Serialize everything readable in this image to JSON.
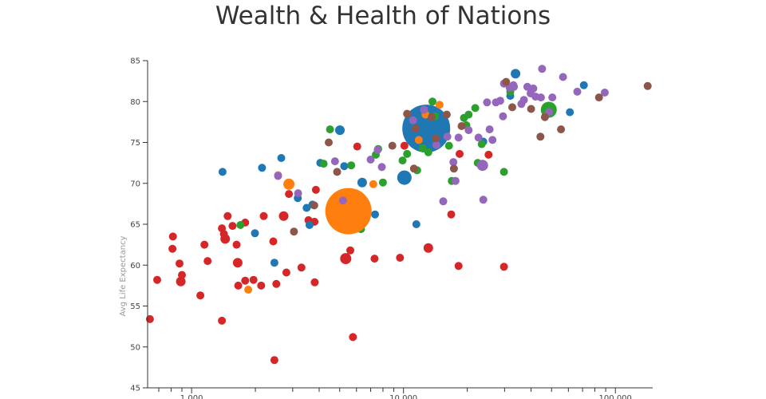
{
  "chart_data": {
    "type": "scatter",
    "title": "Wealth & Health of Nations",
    "xlabel": "",
    "ylabel": "Avg Life Expectancy",
    "x_scale": "log",
    "xlim": [
      620,
      150000
    ],
    "ylim": [
      45,
      85
    ],
    "grid": false,
    "x_ticks": [
      1000,
      10000,
      100000
    ],
    "x_tick_labels": [
      "1,000",
      "10,000",
      "100,000"
    ],
    "y_ticks": [
      45,
      50,
      55,
      60,
      65,
      70,
      75,
      80,
      85
    ],
    "y_tick_labels": [
      "45",
      "50",
      "55",
      "60",
      "65",
      "70",
      "75",
      "80",
      "85"
    ],
    "colors": {
      "red": "#d62728",
      "blue": "#1f77b4",
      "green": "#2ca02c",
      "orange": "#ff7f0e",
      "purple": "#9467bd",
      "brown": "#8c564b"
    },
    "series": [
      {
        "color_key": "red",
        "points": [
          [
            636,
            53.4,
            5
          ],
          [
            688,
            58.2,
            5
          ],
          [
            816,
            63.5,
            5
          ],
          [
            812,
            62.0,
            5
          ],
          [
            877,
            60.2,
            5
          ],
          [
            889,
            58.0,
            6
          ],
          [
            900,
            58.8,
            5
          ],
          [
            1100,
            56.3,
            5
          ],
          [
            1150,
            62.5,
            5
          ],
          [
            1190,
            60.5,
            5
          ],
          [
            1390,
            53.2,
            5
          ],
          [
            1390,
            64.5,
            5
          ],
          [
            1440,
            63.2,
            6
          ],
          [
            1420,
            63.8,
            5
          ],
          [
            1480,
            66.0,
            5
          ],
          [
            1560,
            64.8,
            5
          ],
          [
            1630,
            62.5,
            5
          ],
          [
            1650,
            60.3,
            6
          ],
          [
            1660,
            57.5,
            5
          ],
          [
            1790,
            65.2,
            5
          ],
          [
            1790,
            58.1,
            5
          ],
          [
            1960,
            58.2,
            5
          ],
          [
            2130,
            57.5,
            5
          ],
          [
            2190,
            66.0,
            5
          ],
          [
            2430,
            62.9,
            5
          ],
          [
            2460,
            48.4,
            5
          ],
          [
            2510,
            57.7,
            5
          ],
          [
            2720,
            66.0,
            6
          ],
          [
            2800,
            59.1,
            5
          ],
          [
            2880,
            68.7,
            5
          ],
          [
            3300,
            59.7,
            5
          ],
          [
            3560,
            65.5,
            5
          ],
          [
            3800,
            65.3,
            5
          ],
          [
            3810,
            57.9,
            5
          ],
          [
            3860,
            69.2,
            5
          ],
          [
            5340,
            60.8,
            7
          ],
          [
            5610,
            61.8,
            5
          ],
          [
            5770,
            51.2,
            5
          ],
          [
            6050,
            74.5,
            5
          ],
          [
            7300,
            60.8,
            5
          ],
          [
            9630,
            60.9,
            5
          ],
          [
            10100,
            74.6,
            5
          ],
          [
            13100,
            62.1,
            6
          ],
          [
            16800,
            66.2,
            5
          ],
          [
            18200,
            59.9,
            5
          ],
          [
            18400,
            73.6,
            5
          ],
          [
            25200,
            73.5,
            5
          ],
          [
            29800,
            59.8,
            5
          ]
        ]
      },
      {
        "color_key": "blue",
        "points": [
          [
            1400,
            71.4,
            5
          ],
          [
            1990,
            63.9,
            5
          ],
          [
            2150,
            71.9,
            5
          ],
          [
            2460,
            60.3,
            5
          ],
          [
            2650,
            73.1,
            5
          ],
          [
            3170,
            68.2,
            5
          ],
          [
            3490,
            67.0,
            5
          ],
          [
            3600,
            64.9,
            5
          ],
          [
            3720,
            67.4,
            5
          ],
          [
            4050,
            72.5,
            5
          ],
          [
            4870,
            66.1,
            5
          ],
          [
            5010,
            76.5,
            6
          ],
          [
            5250,
            72.1,
            5
          ],
          [
            6380,
            70.1,
            6
          ],
          [
            7340,
            66.2,
            5
          ],
          [
            10100,
            70.7,
            9
          ],
          [
            11500,
            65.0,
            5
          ],
          [
            12800,
            76.7,
            30
          ],
          [
            23800,
            75.1,
            5
          ],
          [
            33800,
            83.4,
            6
          ],
          [
            31900,
            80.7,
            5
          ],
          [
            61000,
            78.7,
            5
          ],
          [
            71000,
            82.0,
            5
          ]
        ]
      },
      {
        "color_key": "green",
        "points": [
          [
            1700,
            64.9,
            5
          ],
          [
            4200,
            72.4,
            5
          ],
          [
            4500,
            76.6,
            5
          ],
          [
            5670,
            72.2,
            5
          ],
          [
            6300,
            64.4,
            5
          ],
          [
            7400,
            73.5,
            5
          ],
          [
            7600,
            74.2,
            5
          ],
          [
            8000,
            70.1,
            5
          ],
          [
            9900,
            72.8,
            5
          ],
          [
            10400,
            73.6,
            5
          ],
          [
            11600,
            71.6,
            5
          ],
          [
            12300,
            74.3,
            5
          ],
          [
            13100,
            73.8,
            5
          ],
          [
            13700,
            80.0,
            5
          ],
          [
            14100,
            78.2,
            5
          ],
          [
            16400,
            74.6,
            5
          ],
          [
            16900,
            70.3,
            5
          ],
          [
            19300,
            78.0,
            5
          ],
          [
            19800,
            77.1,
            5
          ],
          [
            20300,
            78.4,
            5
          ],
          [
            21800,
            79.2,
            5
          ],
          [
            22400,
            72.5,
            5
          ],
          [
            23400,
            74.8,
            5
          ],
          [
            29800,
            71.4,
            5
          ],
          [
            31900,
            81.2,
            5
          ],
          [
            48500,
            79.0,
            10
          ]
        ]
      },
      {
        "color_key": "orange",
        "points": [
          [
            1850,
            57.0,
            5
          ],
          [
            2560,
            71.0,
            5
          ],
          [
            2880,
            69.9,
            7
          ],
          [
            5500,
            66.6,
            29
          ],
          [
            7200,
            69.9,
            5
          ],
          [
            11800,
            75.3,
            5
          ],
          [
            12700,
            78.4,
            5
          ],
          [
            14800,
            79.6,
            5
          ]
        ]
      },
      {
        "color_key": "purple",
        "points": [
          [
            2560,
            70.9,
            5
          ],
          [
            3180,
            68.8,
            5
          ],
          [
            4750,
            72.7,
            5
          ],
          [
            5180,
            67.9,
            5
          ],
          [
            7000,
            72.9,
            5
          ],
          [
            7560,
            74.1,
            5
          ],
          [
            7900,
            72.0,
            5
          ],
          [
            11100,
            77.7,
            5
          ],
          [
            12500,
            79.0,
            5
          ],
          [
            14300,
            74.7,
            5
          ],
          [
            15400,
            67.8,
            5
          ],
          [
            16100,
            75.7,
            5
          ],
          [
            17200,
            72.6,
            5
          ],
          [
            17600,
            70.3,
            5
          ],
          [
            18200,
            75.6,
            5
          ],
          [
            20300,
            76.5,
            5
          ],
          [
            22600,
            75.6,
            5
          ],
          [
            23600,
            72.2,
            7
          ],
          [
            23800,
            68.0,
            5
          ],
          [
            24800,
            79.9,
            5
          ],
          [
            25500,
            76.6,
            5
          ],
          [
            26300,
            75.3,
            5
          ],
          [
            27300,
            79.9,
            5
          ],
          [
            28600,
            80.1,
            5
          ],
          [
            29500,
            78.2,
            5
          ],
          [
            29800,
            82.2,
            5
          ],
          [
            31700,
            81.7,
            5
          ],
          [
            33000,
            82.0,
            5
          ],
          [
            33200,
            81.8,
            5
          ],
          [
            36000,
            79.7,
            5
          ],
          [
            37000,
            80.2,
            5
          ],
          [
            38400,
            81.8,
            5
          ],
          [
            39800,
            81.0,
            5
          ],
          [
            41000,
            81.6,
            5
          ],
          [
            42000,
            80.6,
            5
          ],
          [
            44500,
            80.5,
            5
          ],
          [
            45100,
            84.0,
            5
          ],
          [
            48600,
            78.7,
            5
          ],
          [
            50400,
            80.5,
            5
          ],
          [
            56600,
            83.0,
            5
          ],
          [
            66100,
            81.2,
            5
          ],
          [
            89100,
            81.1,
            5
          ]
        ]
      },
      {
        "color_key": "brown",
        "points": [
          [
            3040,
            64.1,
            5
          ],
          [
            3790,
            67.3,
            5
          ],
          [
            4440,
            75.0,
            5
          ],
          [
            4860,
            71.4,
            5
          ],
          [
            8860,
            74.6,
            5
          ],
          [
            10400,
            78.5,
            5
          ],
          [
            11200,
            71.8,
            5
          ],
          [
            11400,
            76.7,
            5
          ],
          [
            13600,
            78.1,
            5
          ],
          [
            14200,
            75.5,
            5
          ],
          [
            16000,
            78.4,
            5
          ],
          [
            17300,
            71.8,
            5
          ],
          [
            18800,
            77.0,
            5
          ],
          [
            30500,
            82.4,
            5
          ],
          [
            32600,
            79.3,
            5
          ],
          [
            40000,
            79.1,
            5
          ],
          [
            44300,
            75.7,
            5
          ],
          [
            46500,
            78.1,
            5
          ],
          [
            55400,
            76.6,
            5
          ],
          [
            83700,
            80.5,
            5
          ],
          [
            142000,
            81.9,
            5
          ]
        ]
      }
    ]
  }
}
